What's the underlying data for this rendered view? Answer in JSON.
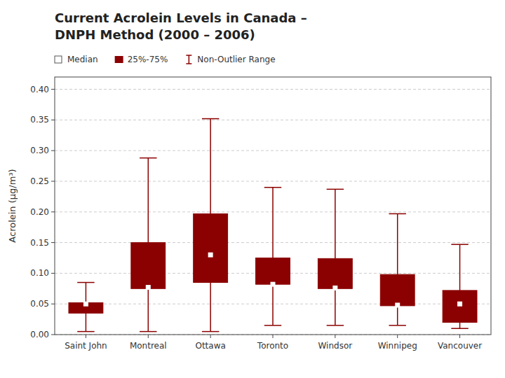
{
  "chart_data": {
    "type": "box",
    "title": "Current Acrolein Levels in Canada –",
    "subtitle": "DNPH Method (2000 – 2006)",
    "ylabel": "Acrolein (μg/m³)",
    "categories": [
      "Saint John",
      "Montreal",
      "Ottawa",
      "Toronto",
      "Windsor",
      "Winnipeg",
      "Vancouver"
    ],
    "series": [
      {
        "name": "Median",
        "marker": "square",
        "color": "#ffffff",
        "values": [
          0.05,
          0.077,
          0.13,
          0.082,
          0.076,
          0.048,
          0.05
        ]
      },
      {
        "name": "25%-75%",
        "color": "#8B0000",
        "low": [
          0.035,
          0.075,
          0.085,
          0.082,
          0.075,
          0.047,
          0.02
        ],
        "high": [
          0.052,
          0.15,
          0.197,
          0.125,
          0.124,
          0.098,
          0.072
        ]
      },
      {
        "name": "Non-Outlier Range",
        "color": "#8B0000",
        "low": [
          0.005,
          0.005,
          0.005,
          0.015,
          0.015,
          0.015,
          0.01
        ],
        "high": [
          0.085,
          0.288,
          0.352,
          0.24,
          0.237,
          0.197,
          0.147
        ]
      }
    ],
    "ylim": [
      0.0,
      0.42
    ],
    "yticks": [
      {
        "value": 0.0,
        "label": "0.00"
      },
      {
        "value": 0.05,
        "label": "0.05"
      },
      {
        "value": 0.1,
        "label": "0.10"
      },
      {
        "value": 0.15,
        "label": "0.15"
      },
      {
        "value": 0.2,
        "label": "0.20"
      },
      {
        "value": 0.25,
        "label": "0.25"
      },
      {
        "value": 0.3,
        "label": "0.30"
      },
      {
        "value": 0.35,
        "label": "0.35"
      },
      {
        "value": 0.4,
        "label": "0.40"
      }
    ],
    "grid": true,
    "legend": "top"
  }
}
